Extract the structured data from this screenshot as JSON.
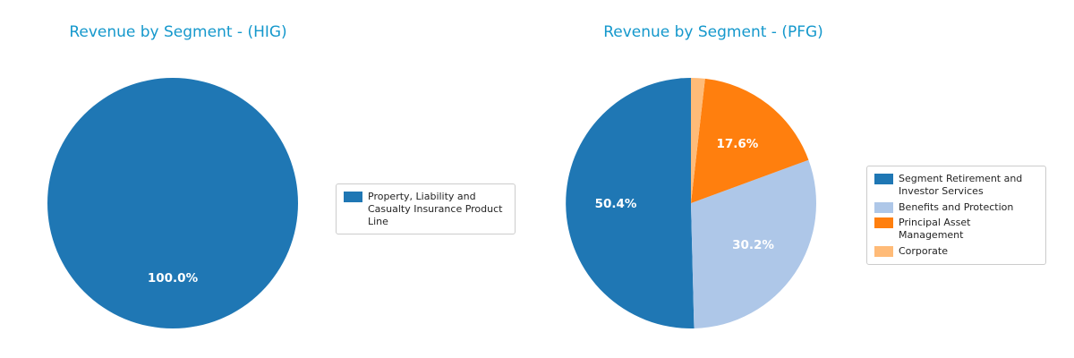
{
  "chart_data": [
    {
      "type": "pie",
      "title": "Revenue by Segment - (HIG)",
      "labels": [
        "Property, Liability and Casualty Insurance Product Line"
      ],
      "values": [
        100.0
      ],
      "pct_labels": [
        "100.0%"
      ],
      "colors": [
        "#1f77b4"
      ],
      "startangle": 90,
      "direction": "counterclockwise",
      "legend_position": "right"
    },
    {
      "type": "pie",
      "title": "Revenue by Segment - (PFG)",
      "labels": [
        "Segment Retirement and Investor Services",
        "Benefits and Protection",
        "Principal Asset Management",
        "Corporate"
      ],
      "values": [
        50.4,
        30.2,
        17.6,
        1.8
      ],
      "pct_labels": [
        "50.4%",
        "30.2%",
        "17.6%",
        ""
      ],
      "colors": [
        "#1f77b4",
        "#aec7e8",
        "#ff7f0e",
        "#ffbb78"
      ],
      "startangle": 90,
      "direction": "counterclockwise",
      "legend_position": "right"
    }
  ],
  "colors": {
    "title": "#1598cc",
    "percent_label": "#ffffff",
    "legend_border": "#cccccc",
    "background": "#ffffff"
  }
}
